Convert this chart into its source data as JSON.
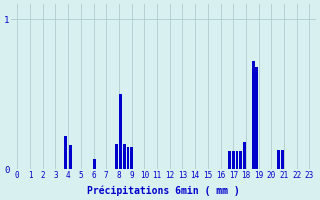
{
  "bar_color": "#0000cc",
  "bg_color": "#d8f0f0",
  "grid_color": "#b0cccc",
  "xlabel": "Précipitations 6min ( mm )",
  "ylim": [
    0,
    1.1
  ],
  "bar_data": [
    [
      3.82,
      0.22
    ],
    [
      4.18,
      0.16
    ],
    [
      6.1,
      0.07
    ],
    [
      7.82,
      0.17
    ],
    [
      8.1,
      0.5
    ],
    [
      8.42,
      0.17
    ],
    [
      8.72,
      0.15
    ],
    [
      9.02,
      0.15
    ],
    [
      16.7,
      0.12
    ],
    [
      17.0,
      0.12
    ],
    [
      17.3,
      0.12
    ],
    [
      17.6,
      0.12
    ],
    [
      17.9,
      0.18
    ],
    [
      18.6,
      0.72
    ],
    [
      18.85,
      0.68
    ],
    [
      20.55,
      0.13
    ],
    [
      20.85,
      0.13
    ]
  ],
  "bar_width": 0.22,
  "xlim": [
    -0.5,
    23.5
  ],
  "xticks": [
    0,
    1,
    2,
    3,
    4,
    5,
    6,
    7,
    8,
    9,
    10,
    11,
    12,
    13,
    14,
    15,
    16,
    17,
    18,
    19,
    20,
    21,
    22,
    23
  ],
  "yticks": [
    0,
    1
  ],
  "xlabel_fontsize": 7,
  "tick_fontsize": 5.5
}
